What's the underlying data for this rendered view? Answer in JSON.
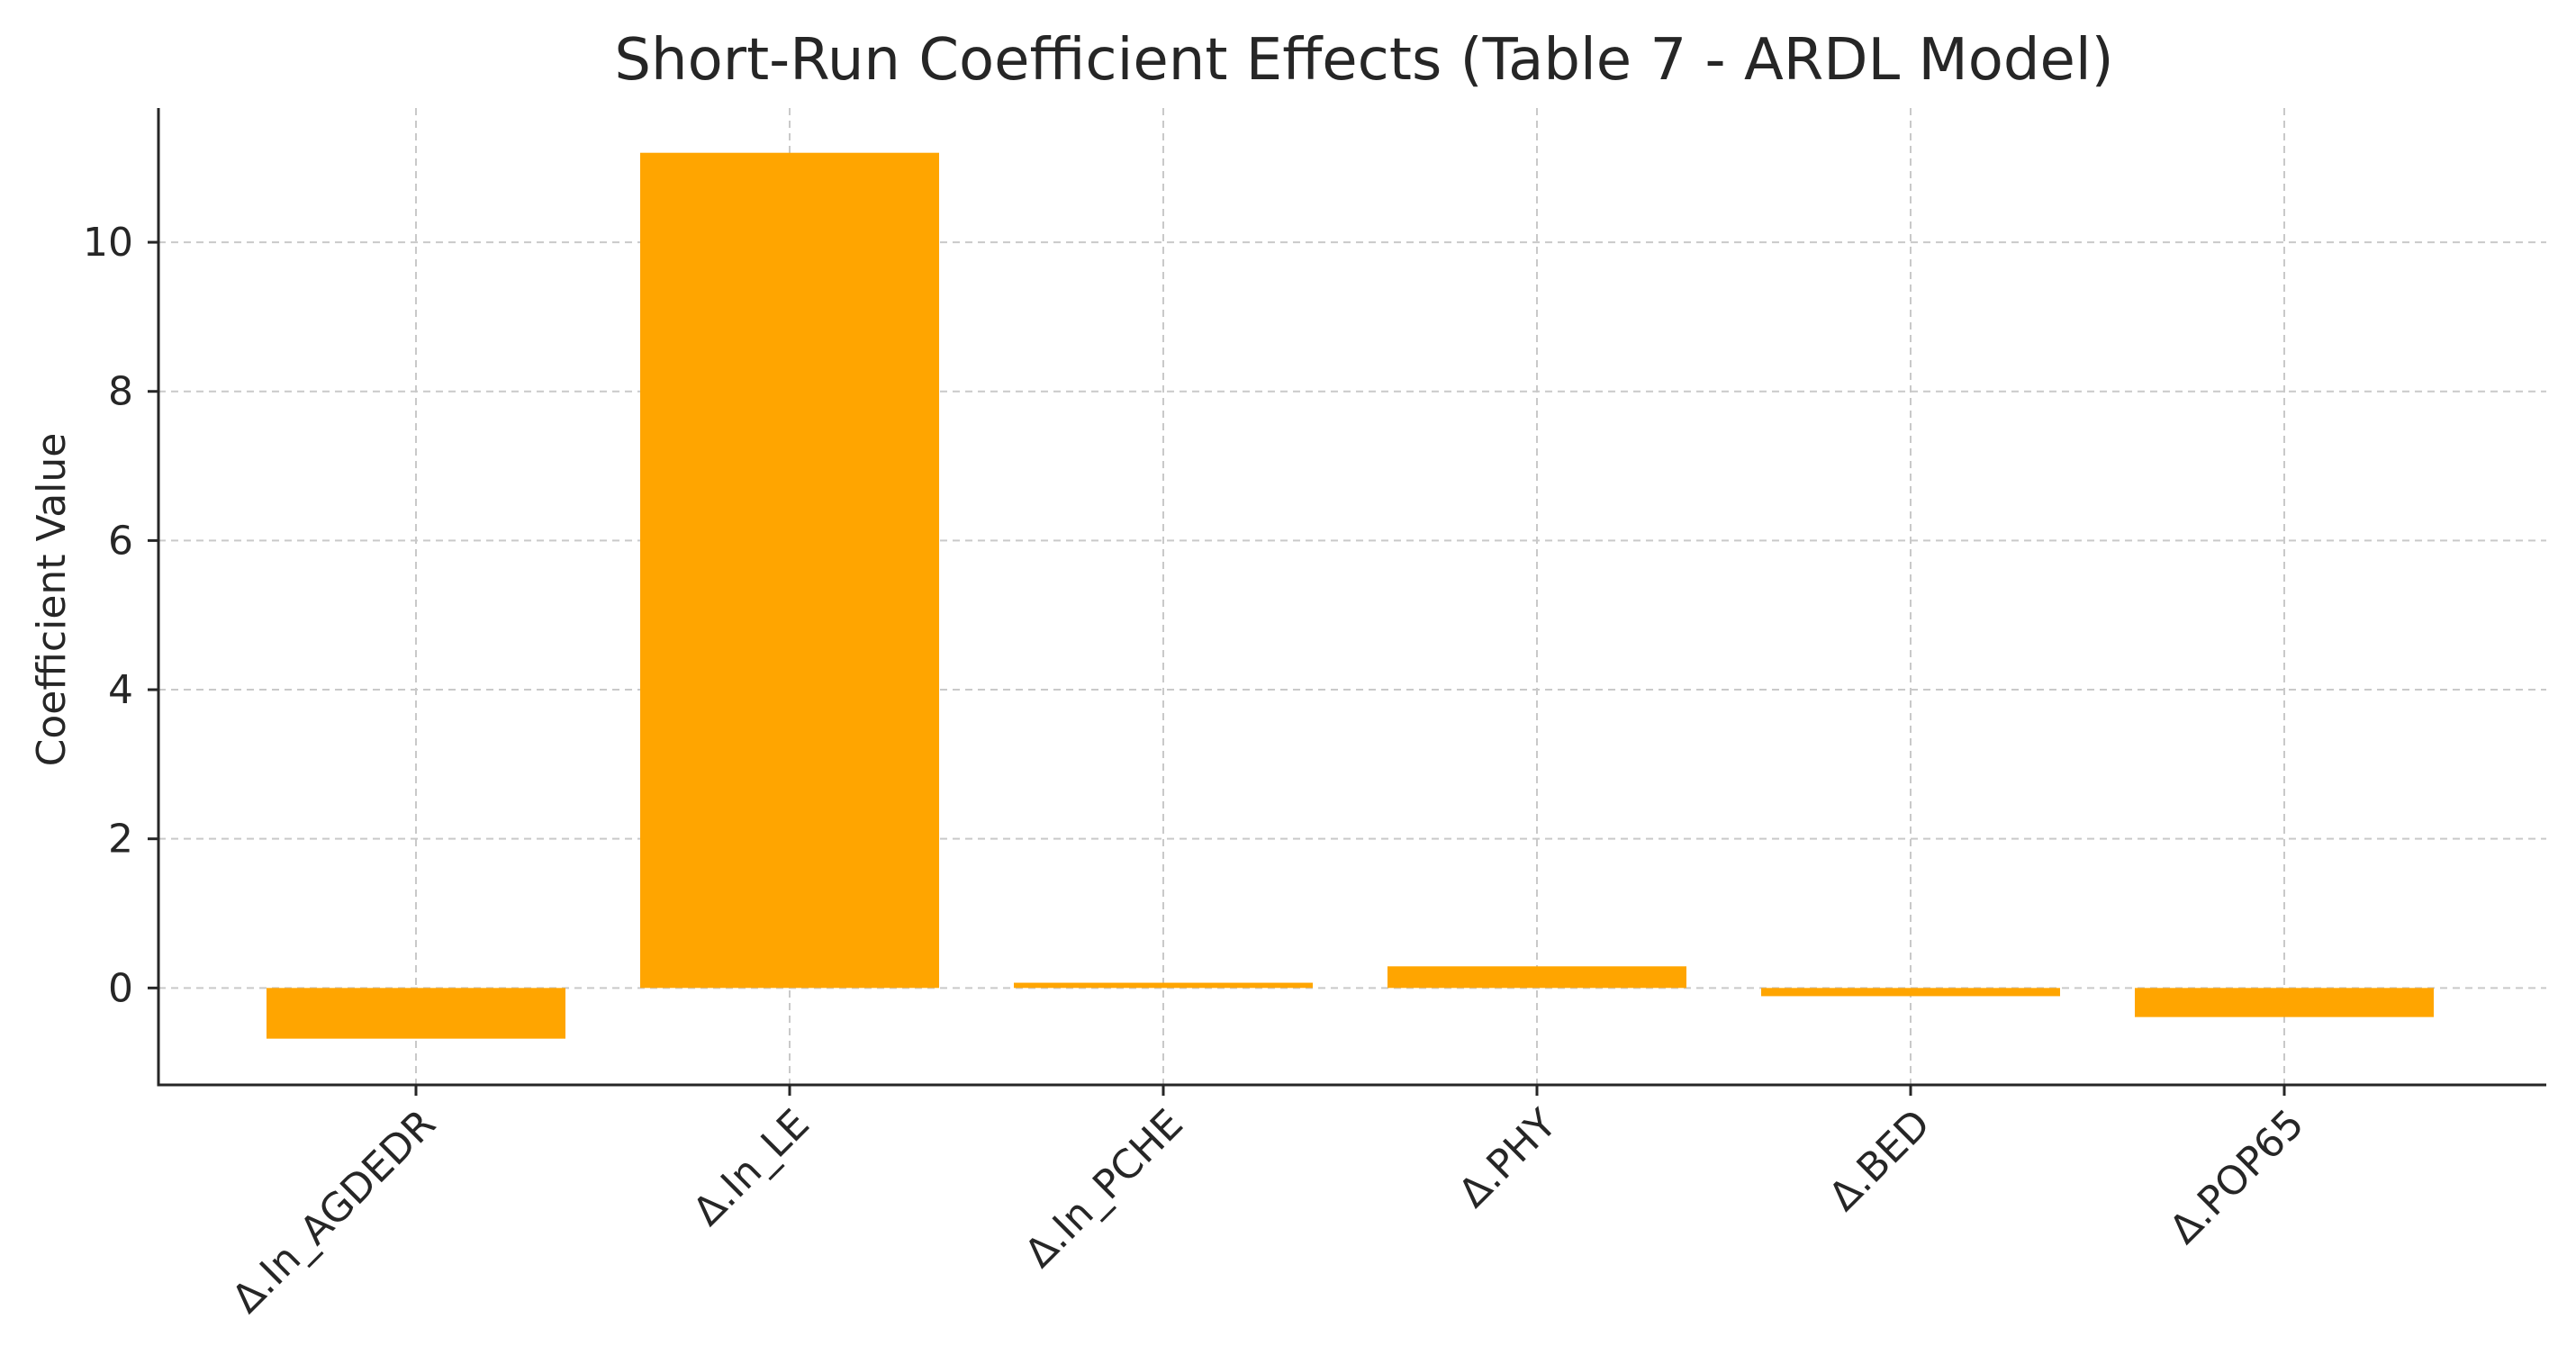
{
  "chart_data": {
    "type": "bar",
    "title": "Short-Run Coefficient Effects (Table 7 - ARDL Model)",
    "xlabel": "",
    "ylabel": "Coefficient Value",
    "categories": [
      "Δ.In_AGDEDR",
      "Δ.In_LE",
      "Δ.In_PCHE",
      "Δ.PHY",
      "Δ.BED",
      "Δ.POP65"
    ],
    "values": [
      -0.68,
      11.2,
      0.07,
      0.29,
      -0.11,
      -0.39
    ],
    "ylim": [
      -1.3,
      11.8
    ],
    "yticks": [
      0,
      2,
      4,
      6,
      8,
      10
    ],
    "grid": true,
    "colors": {
      "bar": "#FFA500",
      "text": "#262626",
      "grid": "#c9c9c9"
    }
  }
}
